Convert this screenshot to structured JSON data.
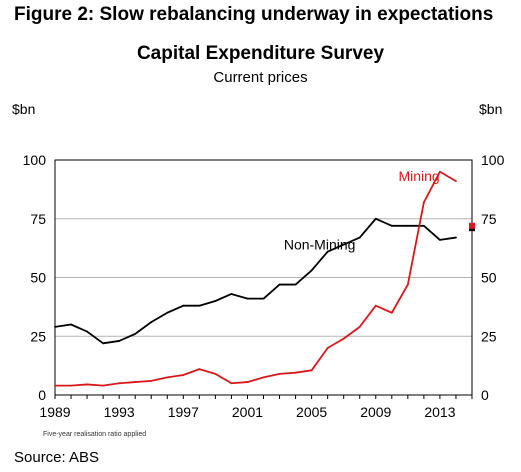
{
  "figure_title": "Figure 2: Slow rebalancing underway in expectations",
  "footnote": "Five-year realisation ratio applied",
  "source": "Source: ABS",
  "chart_data": {
    "type": "line",
    "title": "Capital Expenditure Survey",
    "subtitle": "Current prices",
    "ylabel_left": "$bn",
    "ylabel_right": "$bn",
    "ylim": [
      0,
      100
    ],
    "yticks": [
      0,
      25,
      50,
      75,
      100
    ],
    "xlim": [
      1989,
      2015
    ],
    "xticks": [
      1989,
      1993,
      1997,
      2001,
      2005,
      2009,
      2013
    ],
    "grid": true,
    "colors": {
      "Mining": "#d7191c",
      "Non-Mining": "#000000"
    },
    "series": [
      {
        "name": "Non-Mining",
        "color": "#000000",
        "x": [
          1989,
          1990,
          1991,
          1992,
          1993,
          1994,
          1995,
          1996,
          1997,
          1998,
          1999,
          2000,
          2001,
          2002,
          2003,
          2004,
          2005,
          2006,
          2007,
          2008,
          2009,
          2010,
          2011,
          2012,
          2013,
          2014
        ],
        "values": [
          29,
          30,
          27,
          22,
          23,
          26,
          31,
          35,
          38,
          38,
          40,
          43,
          41,
          41,
          47,
          47,
          53,
          61,
          64,
          67,
          75,
          72,
          72,
          72,
          66,
          67
        ]
      },
      {
        "name": "Mining",
        "color": "#d7191c",
        "x": [
          1989,
          1990,
          1991,
          1992,
          1993,
          1994,
          1995,
          1996,
          1997,
          1998,
          1999,
          2000,
          2001,
          2002,
          2003,
          2004,
          2005,
          2006,
          2007,
          2008,
          2009,
          2010,
          2011,
          2012,
          2013,
          2014
        ],
        "values": [
          4,
          4,
          4.5,
          4,
          5,
          5.5,
          6,
          7.5,
          8.5,
          11,
          9,
          5,
          5.5,
          7.5,
          9,
          9.5,
          10.5,
          20,
          24,
          29,
          38,
          35,
          47,
          82,
          95,
          91
        ]
      }
    ],
    "expectations": [
      {
        "series": "Non-Mining",
        "x": 2015,
        "value": 71
      },
      {
        "series": "Mining",
        "x": 2015,
        "value": 72
      }
    ],
    "annotations": [
      {
        "text": "Mining",
        "series": "Mining",
        "x": 2011.7,
        "y": 91
      },
      {
        "text": "Non-Mining",
        "series": "Non-Mining",
        "x": 2005.5,
        "y": 62
      }
    ]
  }
}
